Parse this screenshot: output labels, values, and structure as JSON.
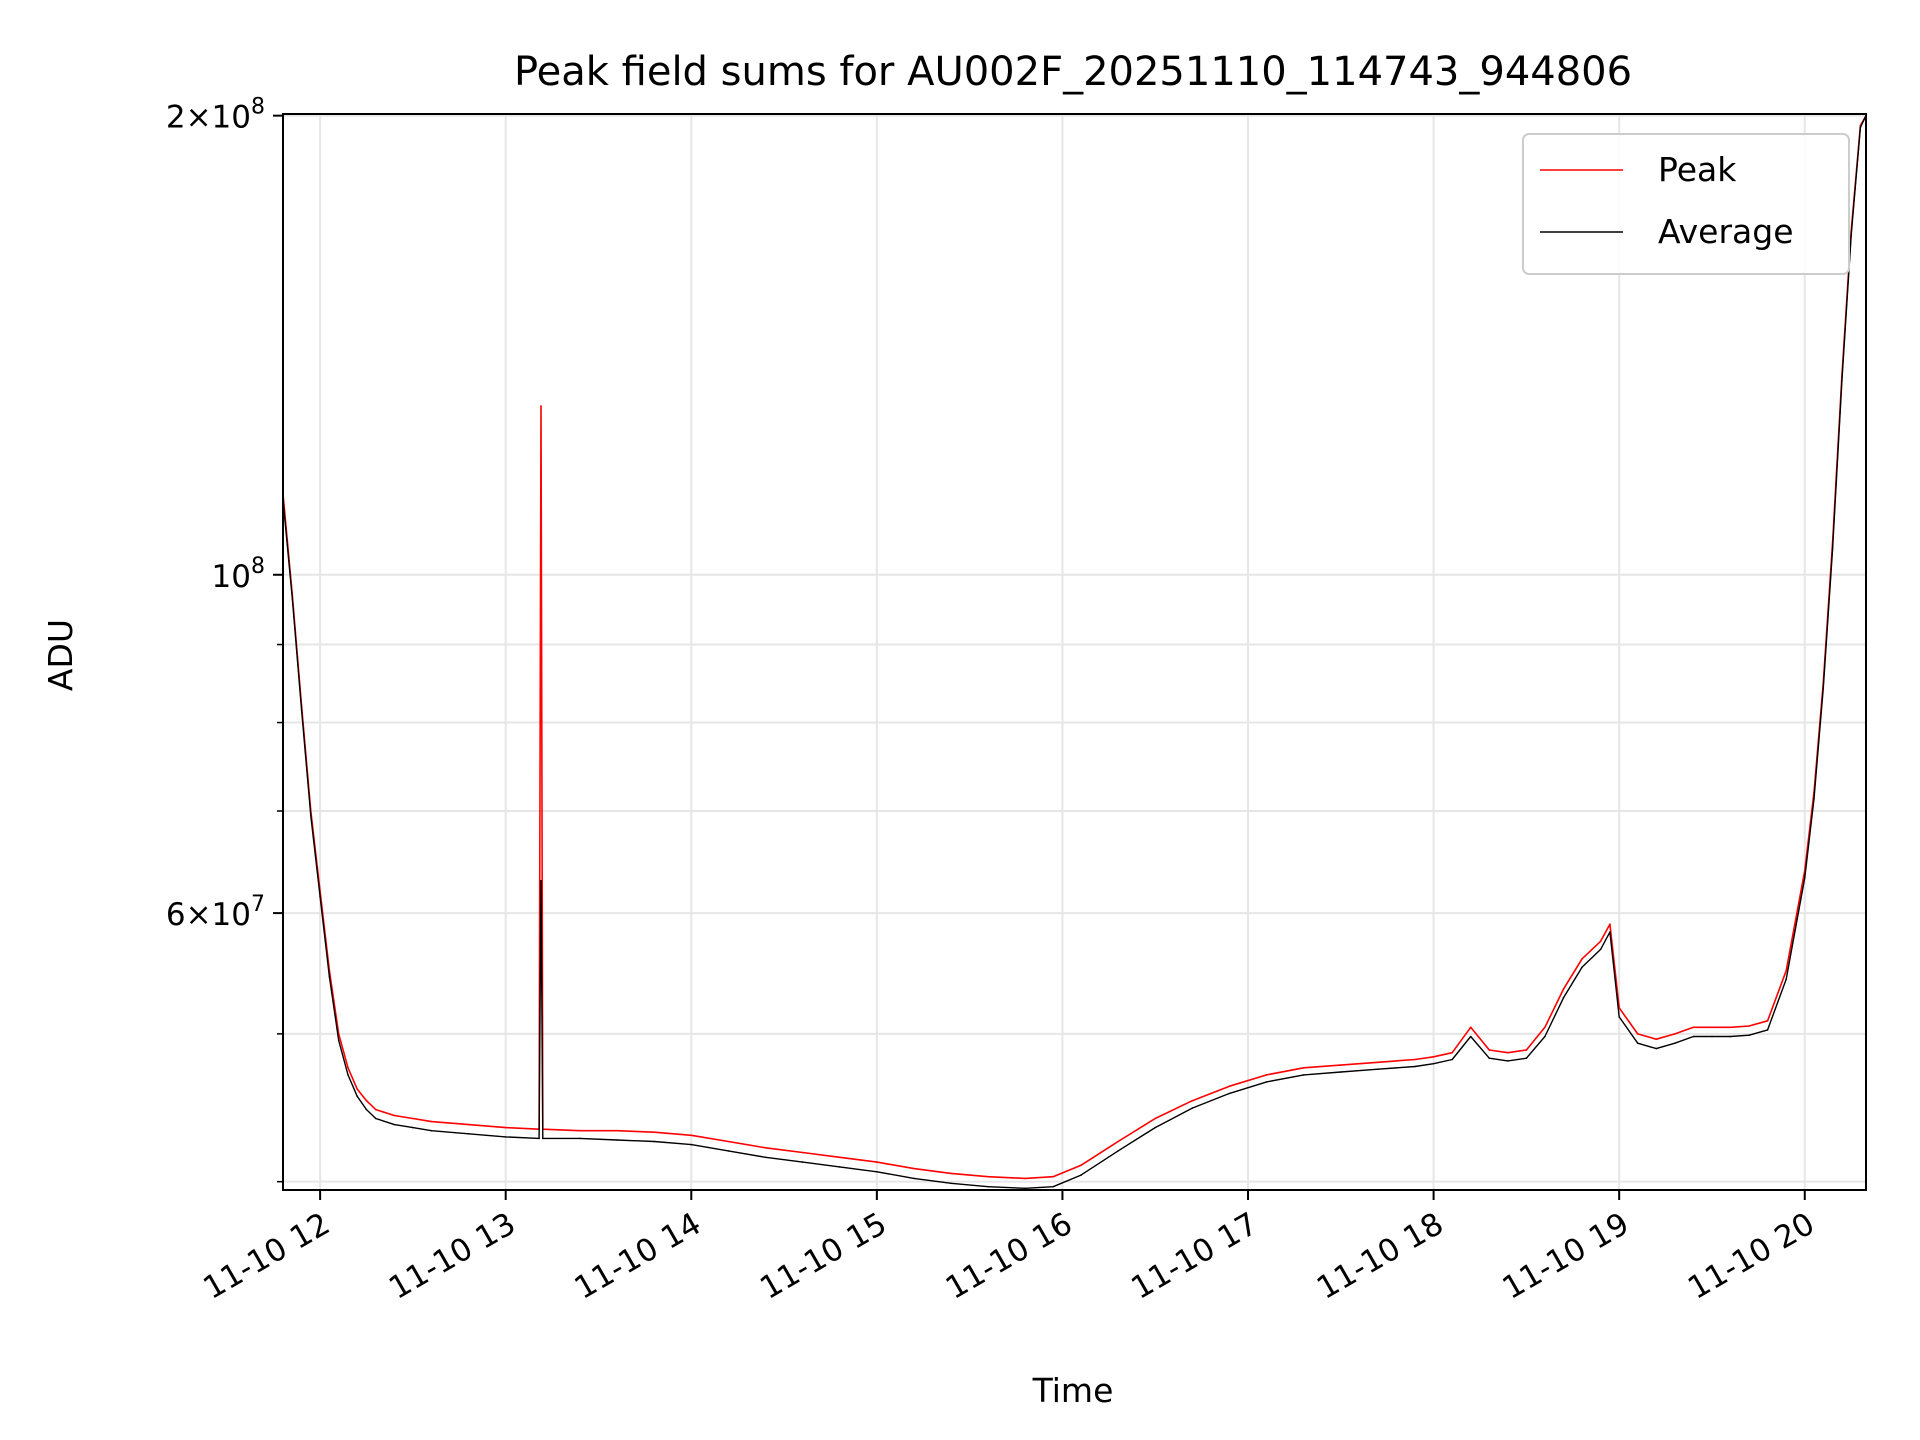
{
  "chart_data": {
    "type": "line",
    "title": "Peak field sums for AU002F_20251110_114743_944806",
    "xlabel": "Time",
    "ylabel": "ADU",
    "x_unit": "hour of 2025-11-10",
    "xlim": [
      11.8,
      20.33
    ],
    "ylim": [
      39500000,
      200500000
    ],
    "yscale": "log",
    "grid": true,
    "legend_position": "upper right",
    "x_ticks": [
      {
        "value": 12,
        "label": "11-10 12"
      },
      {
        "value": 13,
        "label": "11-10 13"
      },
      {
        "value": 14,
        "label": "11-10 14"
      },
      {
        "value": 15,
        "label": "11-10 15"
      },
      {
        "value": 16,
        "label": "11-10 16"
      },
      {
        "value": 17,
        "label": "11-10 17"
      },
      {
        "value": 18,
        "label": "11-10 18"
      },
      {
        "value": 19,
        "label": "11-10 19"
      },
      {
        "value": 20,
        "label": "11-10 20"
      }
    ],
    "y_major_ticks": [
      {
        "value": 60000000,
        "base": "6",
        "exp": "7"
      },
      {
        "value": 100000000,
        "base": "10",
        "exp": "8"
      },
      {
        "value": 200000000,
        "base": "2",
        "exp": "8"
      }
    ],
    "y_minor_ticks": [
      40000000,
      50000000,
      70000000,
      80000000,
      90000000
    ],
    "y_major_separator": "×",
    "series": [
      {
        "name": "Peak",
        "color": "#ff0000",
        "x": [
          11.8,
          11.85,
          11.9,
          11.95,
          12.0,
          12.05,
          12.1,
          12.15,
          12.2,
          12.25,
          12.3,
          12.4,
          12.5,
          12.6,
          12.8,
          13.0,
          13.18,
          13.19,
          13.2,
          13.4,
          13.6,
          13.8,
          14.0,
          14.2,
          14.4,
          14.6,
          14.8,
          15.0,
          15.2,
          15.4,
          15.6,
          15.8,
          15.95,
          16.1,
          16.3,
          16.5,
          16.7,
          16.9,
          17.1,
          17.3,
          17.5,
          17.7,
          17.9,
          18.0,
          18.1,
          18.2,
          18.3,
          18.4,
          18.5,
          18.6,
          18.7,
          18.8,
          18.9,
          18.95,
          19.0,
          19.1,
          19.2,
          19.3,
          19.4,
          19.5,
          19.6,
          19.7,
          19.8,
          19.9,
          20.0,
          20.05,
          20.1,
          20.15,
          20.2,
          20.25,
          20.3,
          20.33
        ],
        "y": [
          113000000,
          97000000,
          82000000,
          70000000,
          62000000,
          55000000,
          50000000,
          47500000,
          46000000,
          45200000,
          44600000,
          44200000,
          44000000,
          43800000,
          43600000,
          43400000,
          43300000,
          129000000,
          43300000,
          43200000,
          43200000,
          43100000,
          42900000,
          42500000,
          42100000,
          41800000,
          41500000,
          41200000,
          40800000,
          40500000,
          40300000,
          40200000,
          40300000,
          41000000,
          42500000,
          44000000,
          45200000,
          46200000,
          47000000,
          47500000,
          47700000,
          47900000,
          48100000,
          48300000,
          48600000,
          50500000,
          48800000,
          48600000,
          48800000,
          50500000,
          53500000,
          56000000,
          57500000,
          59000000,
          52000000,
          50000000,
          49600000,
          50000000,
          50500000,
          50500000,
          50500000,
          50600000,
          51000000,
          55000000,
          64000000,
          72000000,
          85000000,
          105000000,
          135000000,
          168000000,
          197000000,
          200000000
        ]
      },
      {
        "name": "Average",
        "color": "#000000",
        "x": [
          11.8,
          11.85,
          11.9,
          11.95,
          12.0,
          12.05,
          12.1,
          12.15,
          12.2,
          12.25,
          12.3,
          12.4,
          12.5,
          12.6,
          12.8,
          13.0,
          13.18,
          13.19,
          13.2,
          13.4,
          13.6,
          13.8,
          14.0,
          14.2,
          14.4,
          14.6,
          14.8,
          15.0,
          15.2,
          15.4,
          15.6,
          15.8,
          15.95,
          16.1,
          16.3,
          16.5,
          16.7,
          16.9,
          17.1,
          17.3,
          17.5,
          17.7,
          17.9,
          18.0,
          18.1,
          18.2,
          18.3,
          18.4,
          18.5,
          18.6,
          18.7,
          18.8,
          18.9,
          18.95,
          19.0,
          19.1,
          19.2,
          19.3,
          19.4,
          19.5,
          19.6,
          19.7,
          19.8,
          19.9,
          20.0,
          20.05,
          20.1,
          20.15,
          20.2,
          20.25,
          20.3,
          20.33
        ],
        "y": [
          112000000,
          96500000,
          81500000,
          69500000,
          61500000,
          54500000,
          49500000,
          47000000,
          45500000,
          44600000,
          44000000,
          43600000,
          43400000,
          43200000,
          43000000,
          42800000,
          42700000,
          63000000,
          42700000,
          42700000,
          42600000,
          42500000,
          42300000,
          41900000,
          41500000,
          41200000,
          40900000,
          40600000,
          40200000,
          39900000,
          39700000,
          39600000,
          39700000,
          40400000,
          41900000,
          43400000,
          44700000,
          45700000,
          46500000,
          47000000,
          47200000,
          47400000,
          47600000,
          47800000,
          48100000,
          49800000,
          48200000,
          48000000,
          48200000,
          49800000,
          52800000,
          55300000,
          56800000,
          58300000,
          51300000,
          49300000,
          48900000,
          49300000,
          49800000,
          49800000,
          49800000,
          49900000,
          50300000,
          54300000,
          63300000,
          71300000,
          84300000,
          104000000,
          134000000,
          167000000,
          196500000,
          200000000
        ]
      }
    ]
  }
}
